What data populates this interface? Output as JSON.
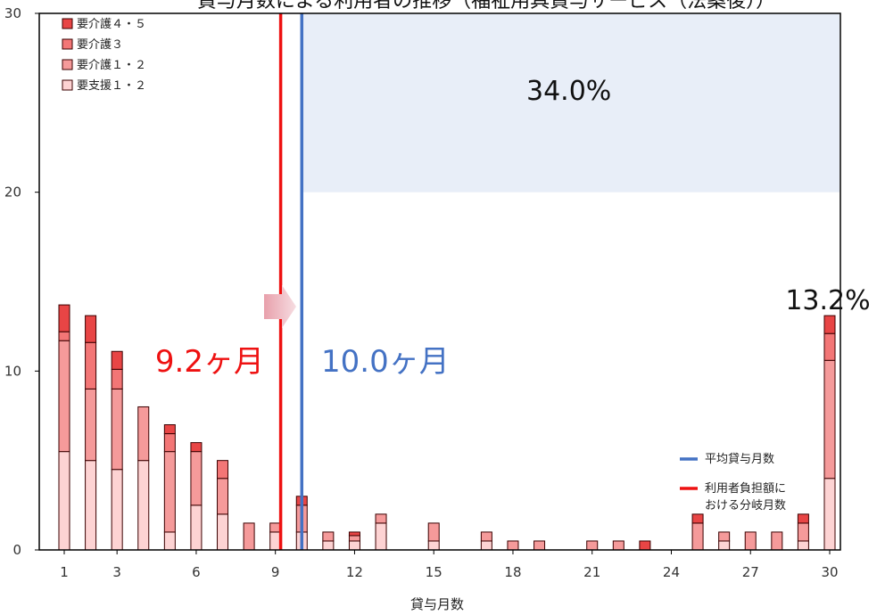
{
  "chart_data": {
    "type": "bar",
    "stacked": true,
    "title": "貸与月数による利用者の推移（福祉用具貸与サービス（法案後））",
    "xlabel": "貸与月数",
    "ylabel": "",
    "ylim": [
      0,
      30
    ],
    "xlim": [
      1,
      30
    ],
    "y_ticks": [
      0,
      10,
      20,
      30
    ],
    "x_ticks": [
      1,
      3,
      6,
      9,
      12,
      15,
      18,
      21,
      24,
      27,
      30
    ],
    "grid": false,
    "legend_position": "top-left",
    "categories": [
      1,
      2,
      3,
      4,
      5,
      6,
      7,
      8,
      9,
      10,
      11,
      12,
      13,
      14,
      15,
      16,
      17,
      18,
      19,
      20,
      21,
      22,
      23,
      24,
      25,
      26,
      27,
      28,
      29,
      30
    ],
    "series": [
      {
        "name": "要支援１・２",
        "color": "#fdd3d3",
        "values": [
          5.5,
          5,
          4.5,
          5,
          1,
          2.5,
          2,
          0,
          1,
          1,
          0.5,
          0.5,
          1.5,
          0,
          0.5,
          0,
          0.5,
          0,
          0,
          0,
          0,
          0,
          0,
          0,
          0,
          0.5,
          0,
          0,
          0.5,
          4
        ]
      },
      {
        "name": "要介護１・２",
        "color": "#f59a9a",
        "values": [
          6.2,
          4,
          4.5,
          3,
          4.5,
          3,
          2,
          1.5,
          0.5,
          1.5,
          0.5,
          0.3,
          0.5,
          0,
          1,
          0,
          0.5,
          0.5,
          0.5,
          0,
          0.5,
          0.5,
          0,
          0,
          1.5,
          0.5,
          1,
          1,
          1,
          6.6
        ]
      },
      {
        "name": "要介護３",
        "color": "#f37676",
        "values": [
          0.5,
          2.6,
          1.1,
          0,
          1,
          0,
          1,
          0,
          0,
          0,
          0,
          0,
          0,
          0,
          0,
          0,
          0,
          0,
          0,
          0,
          0,
          0,
          0,
          0,
          0,
          0,
          0,
          0,
          0,
          1.5
        ]
      },
      {
        "name": "要介護４・５",
        "color": "#e84545",
        "values": [
          1.5,
          1.5,
          1,
          0,
          0.5,
          0.5,
          0,
          0,
          0,
          0.5,
          0,
          0.2,
          0,
          0,
          0,
          0,
          0,
          0,
          0,
          0,
          0,
          0,
          0.5,
          0,
          0.5,
          0,
          0,
          0,
          0.5,
          1
        ]
      }
    ],
    "vlines": [
      {
        "name": "平均貸与月数",
        "x": 10.0,
        "color": "#4472c4",
        "label": "10.0ヶ月"
      },
      {
        "name": "利用者負担額における分岐月数",
        "x": 9.2,
        "color": "#ee1111",
        "label": "9.2ヶ月"
      }
    ],
    "shaded_region": {
      "x_from": 10.0,
      "x_to": 30,
      "y_from": 20,
      "y_to": 30,
      "color": "#e8eef8",
      "label": "34.0%"
    },
    "annotations": [
      {
        "text": "13.2%",
        "x": 30,
        "y": 13.2
      }
    ],
    "line_legend": [
      {
        "label": "平均貸与月数",
        "color": "#4472c4"
      },
      {
        "label": "利用者負担額における分岐月数",
        "color": "#ee1111"
      }
    ]
  }
}
